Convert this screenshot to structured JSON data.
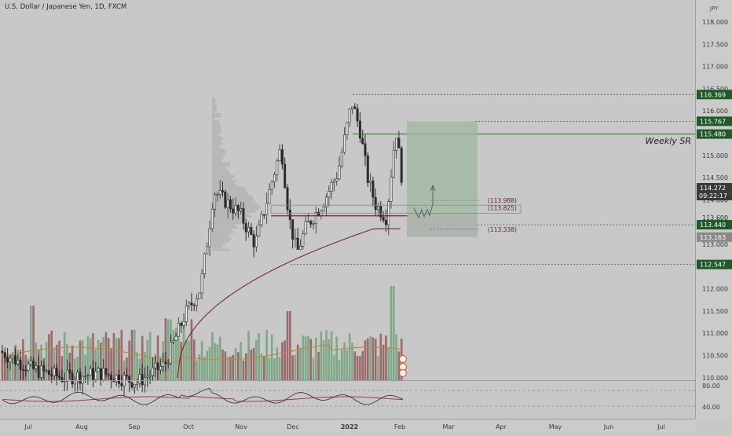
{
  "header": {
    "symbol_title": "U.S. Dollar / Japanese Yen, 1D, FXCM"
  },
  "price_axis": {
    "currency": "JPY",
    "ticks": [
      "118.000",
      "117.500",
      "117.000",
      "116.500",
      "116.000",
      "115.500",
      "115.000",
      "114.500",
      "114.000",
      "113.500",
      "113.000",
      "112.500",
      "112.000",
      "111.500",
      "111.000",
      "110.500",
      "110.000"
    ],
    "tick_values": [
      118.0,
      117.5,
      117.0,
      116.5,
      116.0,
      115.5,
      115.0,
      114.5,
      114.0,
      113.5,
      113.0,
      112.5,
      112.0,
      111.5,
      111.0,
      110.5,
      110.0
    ],
    "labels": [
      {
        "text": "116.369",
        "value": 116.369,
        "kind": "level"
      },
      {
        "text": "115.767",
        "value": 115.767,
        "kind": "level"
      },
      {
        "text": "115.480",
        "value": 115.48,
        "kind": "level"
      },
      {
        "text": "114.272",
        "value": 114.272,
        "kind": "current"
      },
      {
        "text": "09:22:17",
        "value": 114.272,
        "kind": "countdown"
      },
      {
        "text": "113.600",
        "value": 113.6,
        "kind": "plain"
      },
      {
        "text": "113.440",
        "value": 113.44,
        "kind": "level"
      },
      {
        "text": "113.163",
        "value": 113.163,
        "kind": "grey"
      },
      {
        "text": "112.547",
        "value": 112.547,
        "kind": "level"
      }
    ]
  },
  "rsi_axis": {
    "ticks": [
      "80.00",
      "40.00"
    ]
  },
  "time_axis": {
    "labels": [
      "Jul",
      "Aug",
      "Sep",
      "Oct",
      "Nov",
      "Dec",
      "2022",
      "Feb",
      "Mar",
      "Apr",
      "May",
      "Jun",
      "Jul"
    ]
  },
  "annotations": {
    "weekly_sr": "Weekly SR",
    "level_labels": [
      "(113.988)",
      "(113.825)",
      "(113.338)"
    ]
  },
  "colors": {
    "up": "#6e9a76",
    "down": "#3a3a3a",
    "volume_up": "#7fa886",
    "volume_down": "#9a6a6a",
    "ma_line": "#7a2a2a",
    "vol_ma": "#c8823c",
    "level_box": "#1e5a28",
    "current_box": "#3a3a3a",
    "trade_zone": "#9fb8a0"
  },
  "chart_data": {
    "type": "candlestick",
    "title": "U.S. Dollar / Japanese Yen, 1D, FXCM",
    "ylim": [
      110.0,
      118.3
    ],
    "key_levels": [
      116.369,
      115.767,
      115.48,
      113.44,
      112.547
    ],
    "current_price": 114.272,
    "trade_zone": {
      "top": 115.767,
      "bottom": 113.163
    },
    "rsi_range": [
      40,
      80
    ]
  }
}
